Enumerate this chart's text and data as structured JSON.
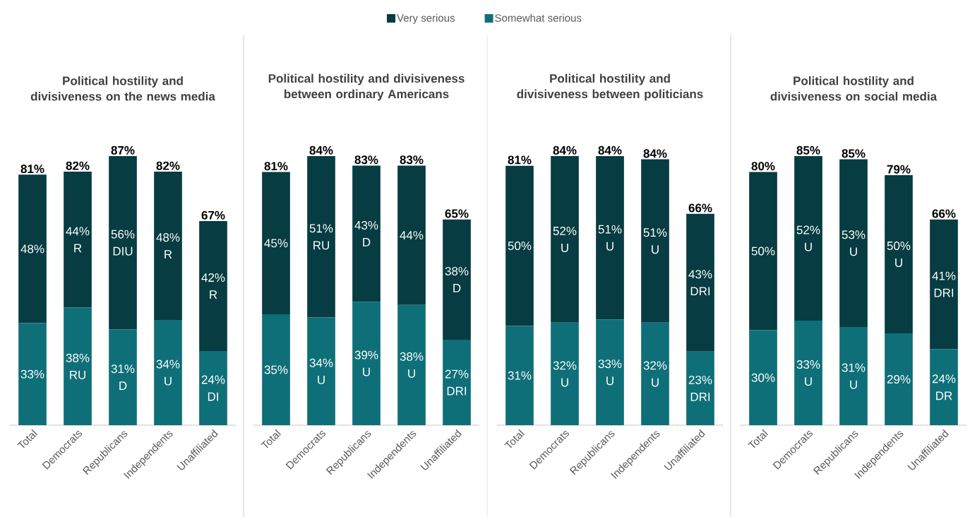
{
  "chart_data": [
    {
      "type": "bar",
      "stacked": true,
      "legend": "top",
      "title": "Political hostility and divisiveness on the news media",
      "categories": [
        "Total",
        "Democrats",
        "Republicans",
        "Independents",
        "Unaffiliated"
      ],
      "series": [
        {
          "name": "Somewhat serious",
          "color": "#0f6f78",
          "values": [
            33,
            38,
            31,
            34,
            24
          ],
          "value_labels": [
            "33%",
            "38% RU",
            "31% D",
            "34% U",
            "24% DI"
          ]
        },
        {
          "name": "Very serious",
          "color": "#063c42",
          "values": [
            48,
            44,
            56,
            48,
            42
          ],
          "value_labels": [
            "48%",
            "44% R",
            "56% DIU",
            "48% R",
            "42% R"
          ]
        }
      ],
      "totals": [
        "81%",
        "82%",
        "87%",
        "82%",
        "67%"
      ]
    },
    {
      "type": "bar",
      "stacked": true,
      "title": "Political hostility and divisiveness between ordinary Americans",
      "categories": [
        "Total",
        "Democrats",
        "Republicans",
        "Independents",
        "Unaffiliated"
      ],
      "series": [
        {
          "color": "#0f6f78",
          "values": [
            35,
            34,
            39,
            38,
            27
          ],
          "value_labels": [
            "35%",
            "34% U",
            "39% U",
            "38% U",
            "27% DRI"
          ]
        },
        {
          "color": "#063c42",
          "values": [
            45,
            51,
            43,
            44,
            38
          ],
          "value_labels": [
            "45%",
            "51% RU",
            "43% D",
            "44%",
            "38% D"
          ]
        }
      ],
      "totals": [
        "81%",
        "84%",
        "83%",
        "83%",
        "65%"
      ]
    },
    {
      "type": "bar",
      "stacked": true,
      "title": "Political hostility and divisiveness between politicians",
      "categories": [
        "Total",
        "Democrats",
        "Republicans",
        "Independents",
        "Unaffiliated"
      ],
      "series": [
        {
          "color": "#0f6f78",
          "values": [
            31,
            32,
            33,
            32,
            23
          ],
          "value_labels": [
            "31%",
            "32% U",
            "33% U",
            "32% U",
            "23% DRI"
          ]
        },
        {
          "color": "#063c42",
          "values": [
            50,
            52,
            51,
            51,
            43
          ],
          "value_labels": [
            "50%",
            "52% U",
            "51% U",
            "51% U",
            "43% DRI"
          ]
        }
      ],
      "totals": [
        "81%",
        "84%",
        "84%",
        "84%",
        "66%"
      ]
    },
    {
      "type": "bar",
      "stacked": true,
      "title": "Political hostility and divisiveness on social media",
      "categories": [
        "Total",
        "Democrats",
        "Republicans",
        "Independents",
        "Unaffiliated"
      ],
      "series": [
        {
          "color": "#0f6f78",
          "values": [
            30,
            33,
            31,
            29,
            24
          ],
          "value_labels": [
            "30%",
            "33% U",
            "31% U",
            "29%",
            "24% DR"
          ]
        },
        {
          "color": "#063c42",
          "values": [
            50,
            52,
            53,
            50,
            41
          ],
          "value_labels": [
            "50%",
            "52% U",
            "53% U",
            "50% U",
            "41% DRI"
          ]
        }
      ],
      "totals": [
        "80%",
        "85%",
        "85%",
        "79%",
        "66%"
      ]
    }
  ]
}
